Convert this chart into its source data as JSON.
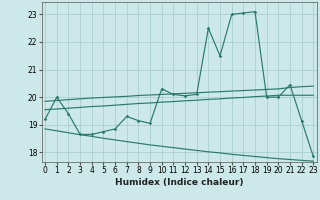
{
  "xlabel": "Humidex (Indice chaleur)",
  "x": [
    0,
    1,
    2,
    3,
    4,
    5,
    6,
    7,
    8,
    9,
    10,
    11,
    12,
    13,
    14,
    15,
    16,
    17,
    18,
    19,
    20,
    21,
    22,
    23
  ],
  "line1": [
    19.2,
    20.0,
    19.4,
    18.65,
    18.65,
    18.75,
    18.85,
    19.3,
    19.15,
    19.05,
    20.3,
    20.1,
    20.05,
    20.1,
    22.5,
    21.5,
    23.0,
    23.05,
    23.1,
    20.0,
    20.0,
    20.45,
    19.15,
    17.85
  ],
  "line2": [
    19.85,
    19.88,
    19.91,
    19.94,
    19.97,
    19.99,
    20.01,
    20.03,
    20.06,
    20.08,
    20.1,
    20.12,
    20.14,
    20.16,
    20.18,
    20.2,
    20.22,
    20.24,
    20.26,
    20.28,
    20.3,
    20.35,
    20.38,
    20.4
  ],
  "line3": [
    19.55,
    19.57,
    19.6,
    19.63,
    19.66,
    19.68,
    19.71,
    19.74,
    19.77,
    19.79,
    19.82,
    19.84,
    19.87,
    19.89,
    19.92,
    19.94,
    19.97,
    19.99,
    20.02,
    20.04,
    20.07,
    20.07,
    20.07,
    20.07
  ],
  "line4": [
    18.85,
    18.78,
    18.71,
    18.64,
    18.58,
    18.51,
    18.45,
    18.39,
    18.33,
    18.27,
    18.22,
    18.17,
    18.12,
    18.07,
    18.02,
    17.98,
    17.93,
    17.89,
    17.85,
    17.81,
    17.77,
    17.74,
    17.71,
    17.68
  ],
  "bg_color": "#cce8e8",
  "grid_color": "#aacece",
  "line_color": "#2a7a6a",
  "ylim": [
    17.65,
    23.45
  ],
  "xlim": [
    -0.3,
    23.3
  ],
  "yticks": [
    18,
    19,
    20,
    21,
    22,
    23
  ],
  "xticks": [
    0,
    1,
    2,
    3,
    4,
    5,
    6,
    7,
    8,
    9,
    10,
    11,
    12,
    13,
    14,
    15,
    16,
    17,
    18,
    19,
    20,
    21,
    22,
    23
  ]
}
